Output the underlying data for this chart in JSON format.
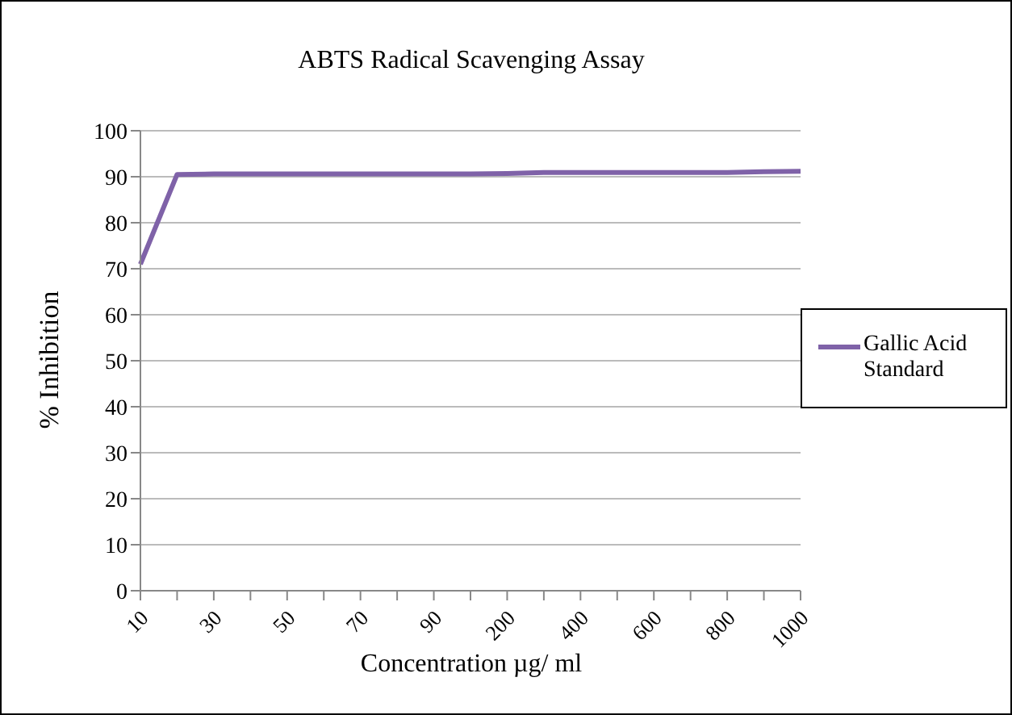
{
  "chart_data": {
    "type": "line",
    "title": "ABTS Radical Scavenging Assay",
    "xlabel": "Concentration µg/ ml",
    "ylabel": "% Inhibition",
    "categories": [
      "10",
      null,
      "30",
      null,
      "50",
      null,
      "70",
      null,
      "90",
      null,
      "200",
      null,
      "400",
      null,
      "600",
      null,
      "800",
      null,
      "1000"
    ],
    "series": [
      {
        "name": "Gallic Acid Standard",
        "color": "#7f62a8",
        "values": [
          71,
          90.5,
          90.6,
          90.6,
          90.6,
          90.6,
          90.6,
          90.6,
          90.6,
          90.6,
          90.7,
          90.9,
          90.9,
          90.9,
          90.9,
          90.9,
          90.9,
          91.1,
          91.2
        ]
      }
    ],
    "ylim": [
      0,
      100
    ],
    "yticks": [
      0,
      10,
      20,
      30,
      40,
      50,
      60,
      70,
      80,
      90,
      100
    ],
    "grid": "y",
    "legend": "right",
    "marker": "none",
    "line_style": "solid"
  }
}
